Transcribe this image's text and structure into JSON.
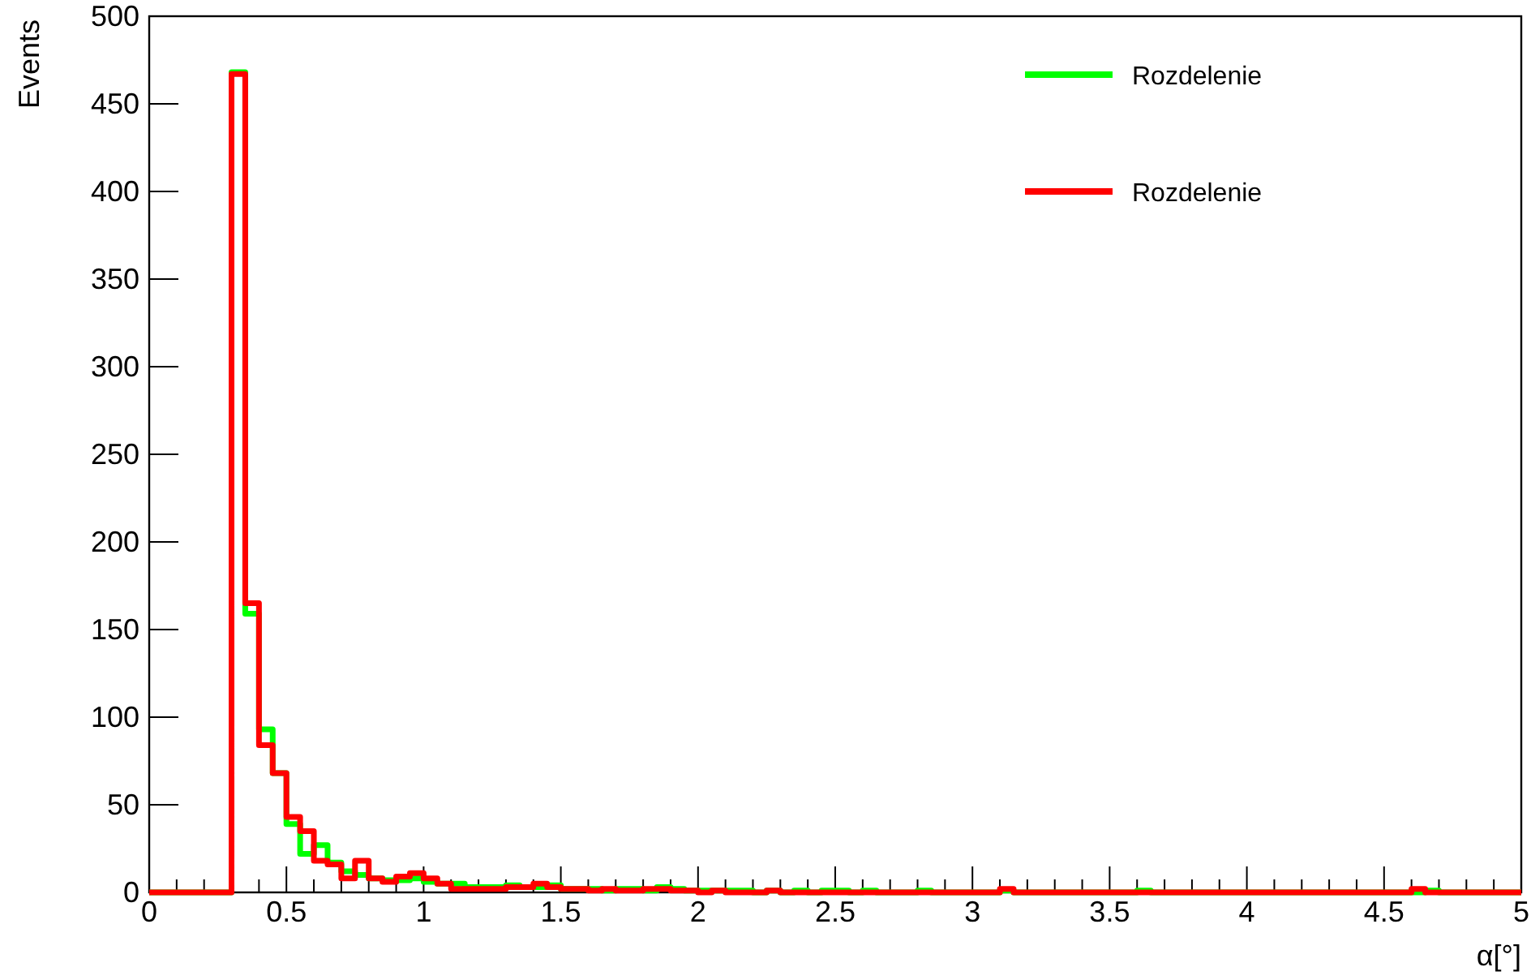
{
  "chart_data": {
    "type": "histogram",
    "xlabel": "α[°]",
    "ylabel": "Events",
    "bins": [
      0,
      0.05,
      0.1,
      0.15,
      0.2,
      0.25,
      0.3,
      0.35,
      0.4,
      0.45,
      0.5,
      0.55,
      0.6,
      0.65,
      0.7,
      0.75,
      0.8,
      0.85,
      0.9,
      0.95,
      1,
      1.05,
      1.1,
      1.15,
      1.2,
      1.25,
      1.3,
      1.35,
      1.4,
      1.45,
      1.5,
      1.55,
      1.6,
      1.65,
      1.7,
      1.75,
      1.8,
      1.85,
      1.9,
      1.95,
      2,
      2.05,
      2.1,
      2.15,
      2.2,
      2.25,
      2.3,
      2.35,
      2.4,
      2.45,
      2.5,
      2.55,
      2.6,
      2.65,
      2.7,
      2.75,
      2.8,
      2.85,
      2.9,
      2.95,
      3,
      3.05,
      3.1,
      3.15,
      3.2,
      3.25,
      3.3,
      3.35,
      3.4,
      3.45,
      3.5,
      3.55,
      3.6,
      3.65,
      3.7,
      3.75,
      3.8,
      3.85,
      3.9,
      3.95,
      4,
      4.05,
      4.1,
      4.15,
      4.2,
      4.25,
      4.3,
      4.35,
      4.4,
      4.45,
      4.5,
      4.55,
      4.6,
      4.65,
      4.7,
      4.75,
      4.8,
      4.85,
      4.9,
      4.95,
      5
    ],
    "series": [
      {
        "name": "Rozdelenie",
        "color": "#00ff00",
        "values": [
          0,
          0,
          0,
          0,
          0,
          0,
          468,
          159,
          93,
          68,
          39,
          22,
          27,
          17,
          12,
          10,
          8,
          7,
          7,
          8,
          6,
          5,
          5,
          3,
          3,
          3,
          4,
          3,
          3,
          4,
          2,
          2,
          2,
          1,
          2,
          2,
          1,
          3,
          2,
          1,
          1,
          1,
          1,
          1,
          0,
          1,
          0,
          1,
          0,
          1,
          1,
          0,
          1,
          0,
          0,
          0,
          1,
          0,
          0,
          0,
          0,
          0,
          1,
          0,
          0,
          0,
          0,
          0,
          0,
          0,
          0,
          0,
          1,
          0,
          0,
          0,
          0,
          0,
          0,
          0,
          0,
          0,
          0,
          0,
          0,
          0,
          0,
          0,
          0,
          0,
          0,
          0,
          0,
          1,
          0,
          0,
          0,
          0,
          0,
          0
        ]
      },
      {
        "name": "Rozdelenie",
        "color": "#ff0000",
        "values": [
          0,
          0,
          0,
          0,
          0,
          0,
          467,
          165,
          84,
          68,
          43,
          35,
          18,
          16,
          8,
          18,
          8,
          6,
          9,
          11,
          8,
          5,
          2,
          2,
          2,
          2,
          3,
          3,
          5,
          3,
          2,
          2,
          1,
          2,
          1,
          1,
          2,
          2,
          1,
          1,
          0,
          1,
          0,
          0,
          0,
          1,
          0,
          0,
          0,
          0,
          0,
          0,
          0,
          0,
          0,
          0,
          0,
          0,
          0,
          0,
          0,
          0,
          2,
          0,
          0,
          0,
          0,
          0,
          0,
          0,
          0,
          0,
          0,
          0,
          0,
          0,
          0,
          0,
          0,
          0,
          0,
          0,
          0,
          0,
          0,
          0,
          0,
          0,
          0,
          0,
          0,
          0,
          2,
          0,
          0,
          0,
          0,
          0,
          0,
          0
        ]
      }
    ],
    "xlim": [
      0,
      5
    ],
    "xticks": [
      0,
      {
        "value": 0.1,
        "label": null
      },
      {
        "value": 0.2,
        "label": null
      },
      {
        "value": 0.3,
        "label": null
      },
      {
        "value": 0.4,
        "label": null
      },
      0.5,
      {
        "value": 0.6,
        "label": null
      },
      {
        "value": 0.7,
        "label": null
      },
      {
        "value": 0.8,
        "label": null
      },
      {
        "value": 0.9,
        "label": null
      },
      1,
      {
        "value": 1.1,
        "label": null
      },
      {
        "value": 1.2,
        "label": null
      },
      {
        "value": 1.3,
        "label": null
      },
      {
        "value": 1.4,
        "label": null
      },
      1.5,
      {
        "value": 1.6,
        "label": null
      },
      {
        "value": 1.7,
        "label": null
      },
      {
        "value": 1.8,
        "label": null
      },
      {
        "value": 1.9,
        "label": null
      },
      2,
      {
        "value": 2.1,
        "label": null
      },
      {
        "value": 2.2,
        "label": null
      },
      {
        "value": 2.3,
        "label": null
      },
      {
        "value": 2.4,
        "label": null
      },
      2.5,
      {
        "value": 2.6,
        "label": null
      },
      {
        "value": 2.7,
        "label": null
      },
      {
        "value": 2.8,
        "label": null
      },
      {
        "value": 2.9,
        "label": null
      },
      3,
      {
        "value": 3.1,
        "label": null
      },
      {
        "value": 3.2,
        "label": null
      },
      {
        "value": 3.3,
        "label": null
      },
      {
        "value": 3.4,
        "label": null
      },
      3.5,
      {
        "value": 3.6,
        "label": null
      },
      {
        "value": 3.7,
        "label": null
      },
      {
        "value": 3.8,
        "label": null
      },
      {
        "value": 3.9,
        "label": null
      },
      4,
      {
        "value": 4.1,
        "label": null
      },
      {
        "value": 4.2,
        "label": null
      },
      {
        "value": 4.3,
        "label": null
      },
      {
        "value": 4.4,
        "label": null
      },
      4.5,
      {
        "value": 4.6,
        "label": null
      },
      {
        "value": 4.7,
        "label": null
      },
      {
        "value": 4.8,
        "label": null
      },
      {
        "value": 4.9,
        "label": null
      },
      5
    ],
    "ylim": [
      0,
      500
    ],
    "yticks": [
      0,
      50,
      100,
      150,
      200,
      250,
      300,
      350,
      400,
      450,
      500
    ],
    "grid": false,
    "legend": "top right"
  }
}
